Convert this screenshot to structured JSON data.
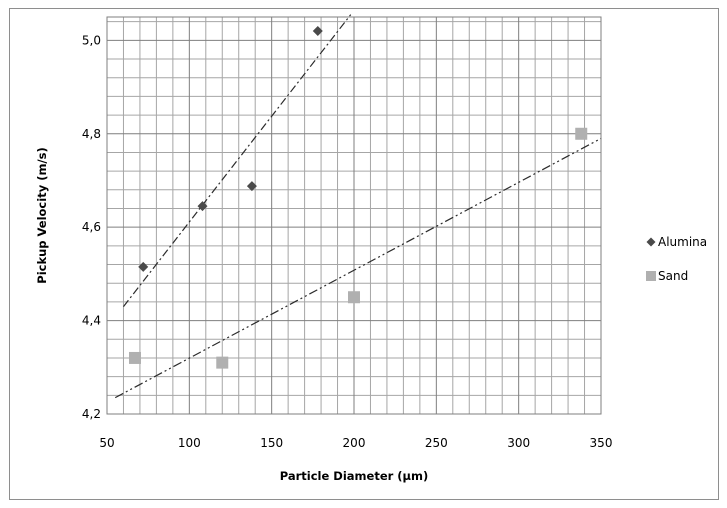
{
  "chart_data": {
    "type": "scatter",
    "title": "",
    "xlabel": "Particle Diameter (µm)",
    "ylabel": "Pickup Velocity (m/s)",
    "xlim": [
      50,
      350
    ],
    "ylim": [
      4.2,
      5.05
    ],
    "x_ticks": [
      "50",
      "100",
      "150",
      "200",
      "250",
      "300",
      "350"
    ],
    "y_ticks": [
      "4,2",
      "4,4",
      "4,6",
      "4,8",
      "5,0"
    ],
    "x_tick_values": [
      50,
      100,
      150,
      200,
      250,
      300,
      350
    ],
    "y_tick_values": [
      4.2,
      4.4,
      4.6,
      4.8,
      5.0
    ],
    "grid": true,
    "legend_position": "right",
    "series": [
      {
        "name": "Alumina",
        "marker": "diamond",
        "color": "#4a4a4a",
        "points": [
          [
            72,
            4.515
          ],
          [
            108,
            4.645
          ],
          [
            138,
            4.688
          ],
          [
            178,
            5.02
          ]
        ],
        "trendline": {
          "x": [
            60,
            198
          ],
          "y": [
            4.43,
            5.055
          ],
          "style": "dash-dot"
        }
      },
      {
        "name": "Sand",
        "marker": "square",
        "color": "#b0b0b0",
        "points": [
          [
            67,
            4.32
          ],
          [
            120,
            4.31
          ],
          [
            200,
            4.45
          ],
          [
            338,
            4.8
          ]
        ],
        "trendline": {
          "x": [
            55,
            350
          ],
          "y": [
            4.235,
            4.79
          ],
          "style": "dash-dot-dot"
        }
      }
    ]
  }
}
